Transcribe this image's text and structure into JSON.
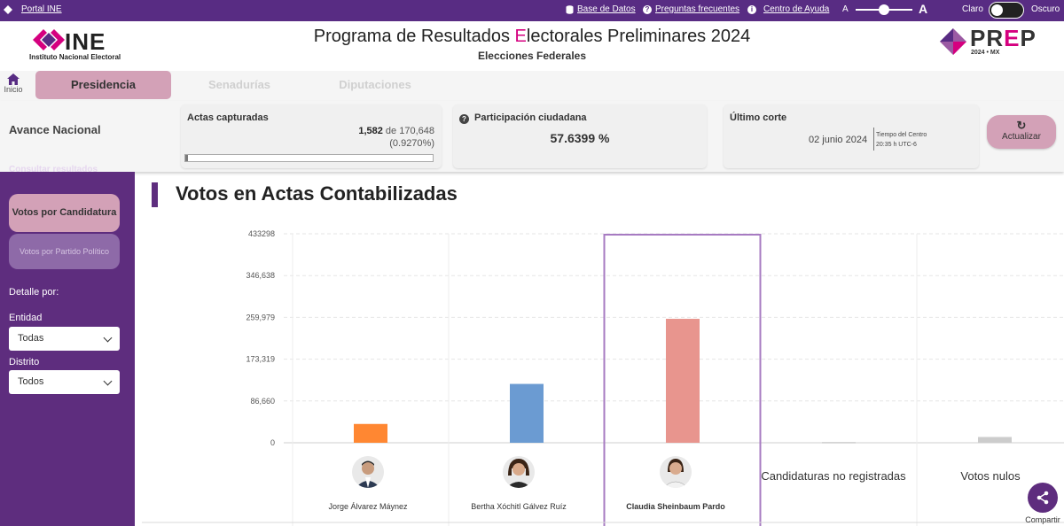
{
  "topbar": {
    "portal_label": "Portal INE",
    "database_label": "Base de Datos",
    "faq_label": "Preguntas frecuentes",
    "help_label": "Centro de Ayuda",
    "font_small": "A",
    "font_large": "A",
    "theme_light": "Claro",
    "theme_dark": "Oscuro"
  },
  "header": {
    "ine_logo_text": "INE",
    "ine_logo_sub": "Instituto Nacional Electoral",
    "title_part1": "Programa de Resultados ",
    "title_highlight": "E",
    "title_part2": "lectorales Preliminares 2024",
    "subtitle": "Elecciones Federales",
    "prep_logo_pr": "PR",
    "prep_logo_e": "E",
    "prep_logo_p": "P",
    "prep_logo_sub": "2024 • MX"
  },
  "nav": {
    "home_label": "Inicio",
    "tabs": [
      {
        "label": "Presidencia",
        "active": true
      },
      {
        "label": "Senadurías",
        "active": false
      },
      {
        "label": "Diputaciones",
        "active": false
      }
    ]
  },
  "stats": {
    "section_label": "Avance Nacional",
    "actas": {
      "label": "Actas capturadas",
      "captured": "1,582",
      "of_label": "de",
      "total": "170,648",
      "percent": "(0.9270%)",
      "progress_fraction": 0.00927
    },
    "participation": {
      "label": "Participación ciudadana",
      "value": "57.6399 %"
    },
    "last_cut": {
      "label": "Último corte",
      "date": "02 junio 2024",
      "tz_line1": "Tiempo del Centro",
      "tz_line2": "20:35 h UTC-6"
    },
    "refresh_label": "Actualizar"
  },
  "sidebar": {
    "cutoff_label": "Consultar resultados",
    "view_buttons": [
      {
        "label": "Votos por Candidatura",
        "active": true
      },
      {
        "label": "Votos por Partido Político",
        "active": false
      }
    ],
    "detail_label": "Detalle por:",
    "entity_label": "Entidad",
    "entity_value": "Todas",
    "district_label": "Distrito",
    "district_value": "Todos"
  },
  "main": {
    "title": "Votos en Actas Contabilizadas",
    "share_label": "Compartir"
  },
  "chart_data": {
    "type": "bar",
    "title": "Votos en Actas Contabilizadas",
    "ylim": [
      0,
      433298
    ],
    "yticks": [
      "433298",
      "346,638",
      "259,979",
      "173,319",
      "86,660",
      "0"
    ],
    "categories": [
      "Jorge Álvarez Máynez",
      "Bertha Xóchitl Gálvez Ruíz",
      "Claudia Sheinbaum Pardo",
      "Candidaturas no registradas",
      "Votos nulos"
    ],
    "values": [
      39000,
      122000,
      257000,
      1500,
      12000
    ],
    "colors": [
      "#ff8732",
      "#6b9bd2",
      "#e8958e",
      "#cccccc",
      "#cccccc"
    ],
    "highlighted_index": 2
  }
}
